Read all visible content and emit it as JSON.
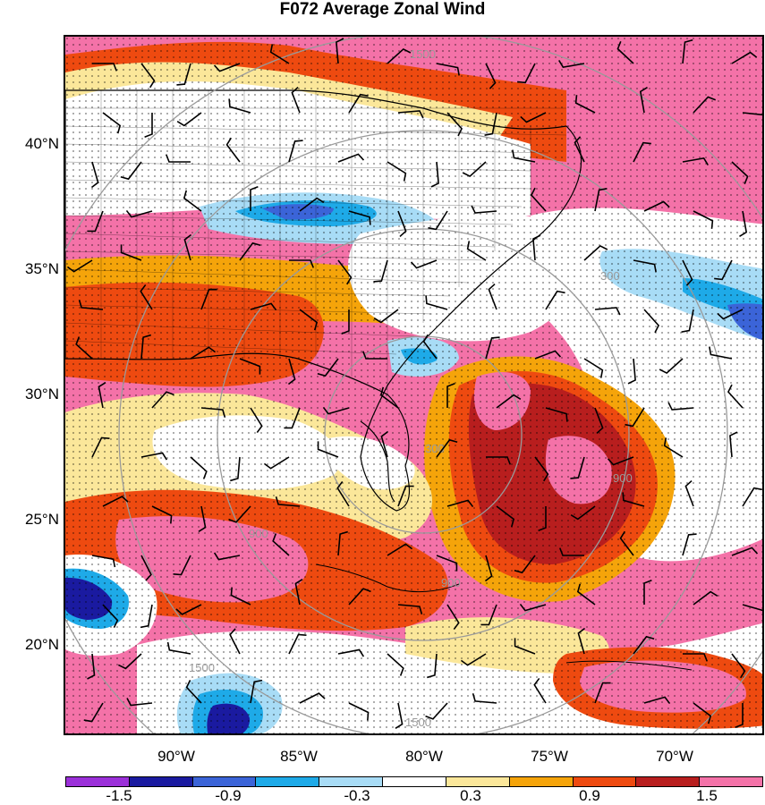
{
  "title": "F072 Average Zonal Wind",
  "map": {
    "latitude_labels": [
      "40°N",
      "35°N",
      "30°N",
      "25°N",
      "20°N"
    ],
    "longitude_labels": [
      "90°W",
      "85°W",
      "80°W",
      "75°W",
      "70°W"
    ],
    "range_ring_labels": [
      "1500",
      "300",
      "300",
      "900",
      "900",
      "900",
      "1500",
      "1500"
    ],
    "fill_colors": {
      "purple": "#9b30d9",
      "navy": "#1a1aa0",
      "blue": "#3b64d8",
      "cyan": "#1eaae8",
      "light_blue": "#a8dcf6",
      "white": "#ffffff",
      "light_yellow": "#fbe79a",
      "orange": "#f5a40a",
      "red_orange": "#ee4a10",
      "dark_red": "#b81e1e",
      "pink": "#f472a8"
    }
  },
  "colorbar": {
    "tick_labels": [
      "-1.5",
      "-0.9",
      "-0.3",
      "0.3",
      "0.9",
      "1.5"
    ],
    "colors": [
      "#9b30d9",
      "#1a1aa0",
      "#3b64d8",
      "#1eaae8",
      "#a8dcf6",
      "#ffffff",
      "#fbe79a",
      "#f5a40a",
      "#ee4a10",
      "#b81e1e",
      "#f472a8"
    ]
  }
}
